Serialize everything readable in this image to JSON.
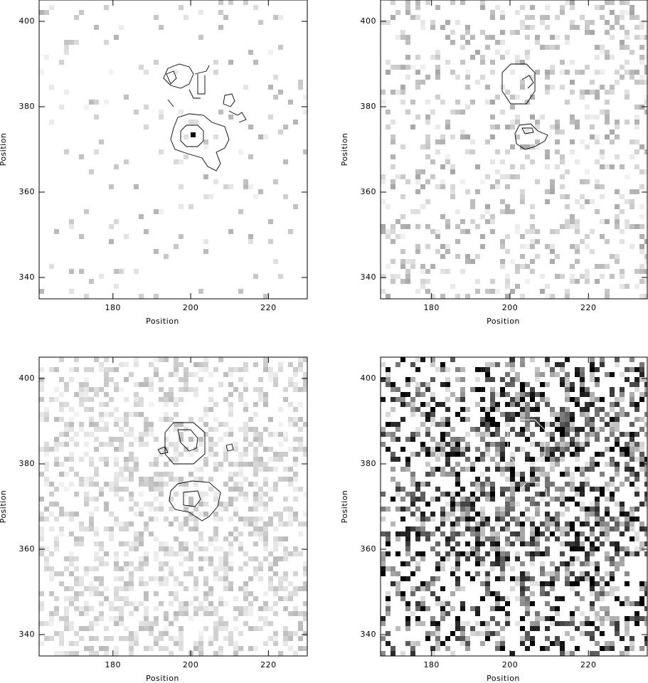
{
  "chart_data": [
    {
      "type": "image",
      "xlabel": "Position",
      "ylabel": "Position",
      "xlim": [
        161,
        230
      ],
      "ylim": [
        335,
        405
      ],
      "xticks": [
        180,
        200,
        220
      ],
      "yticks": [
        340,
        360,
        380,
        400
      ]
    },
    {
      "type": "image",
      "xlabel": "Position",
      "ylabel": "Position",
      "xlim": [
        167,
        235
      ],
      "ylim": [
        335,
        405
      ],
      "xticks": [
        180,
        200,
        220
      ],
      "yticks": [
        340,
        360,
        380,
        400
      ]
    },
    {
      "type": "image",
      "xlabel": "Position",
      "ylabel": "Position",
      "xlim": [
        161,
        230
      ],
      "ylim": [
        335,
        405
      ],
      "xticks": [
        180,
        200,
        220
      ],
      "yticks": [
        340,
        360,
        380,
        400
      ]
    },
    {
      "type": "image",
      "xlabel": "Position",
      "ylabel": "Position",
      "xlim": [
        167,
        235
      ],
      "ylim": [
        335,
        405
      ],
      "xticks": [
        180,
        200,
        220
      ],
      "yticks": [
        340,
        360,
        380,
        400
      ]
    }
  ]
}
